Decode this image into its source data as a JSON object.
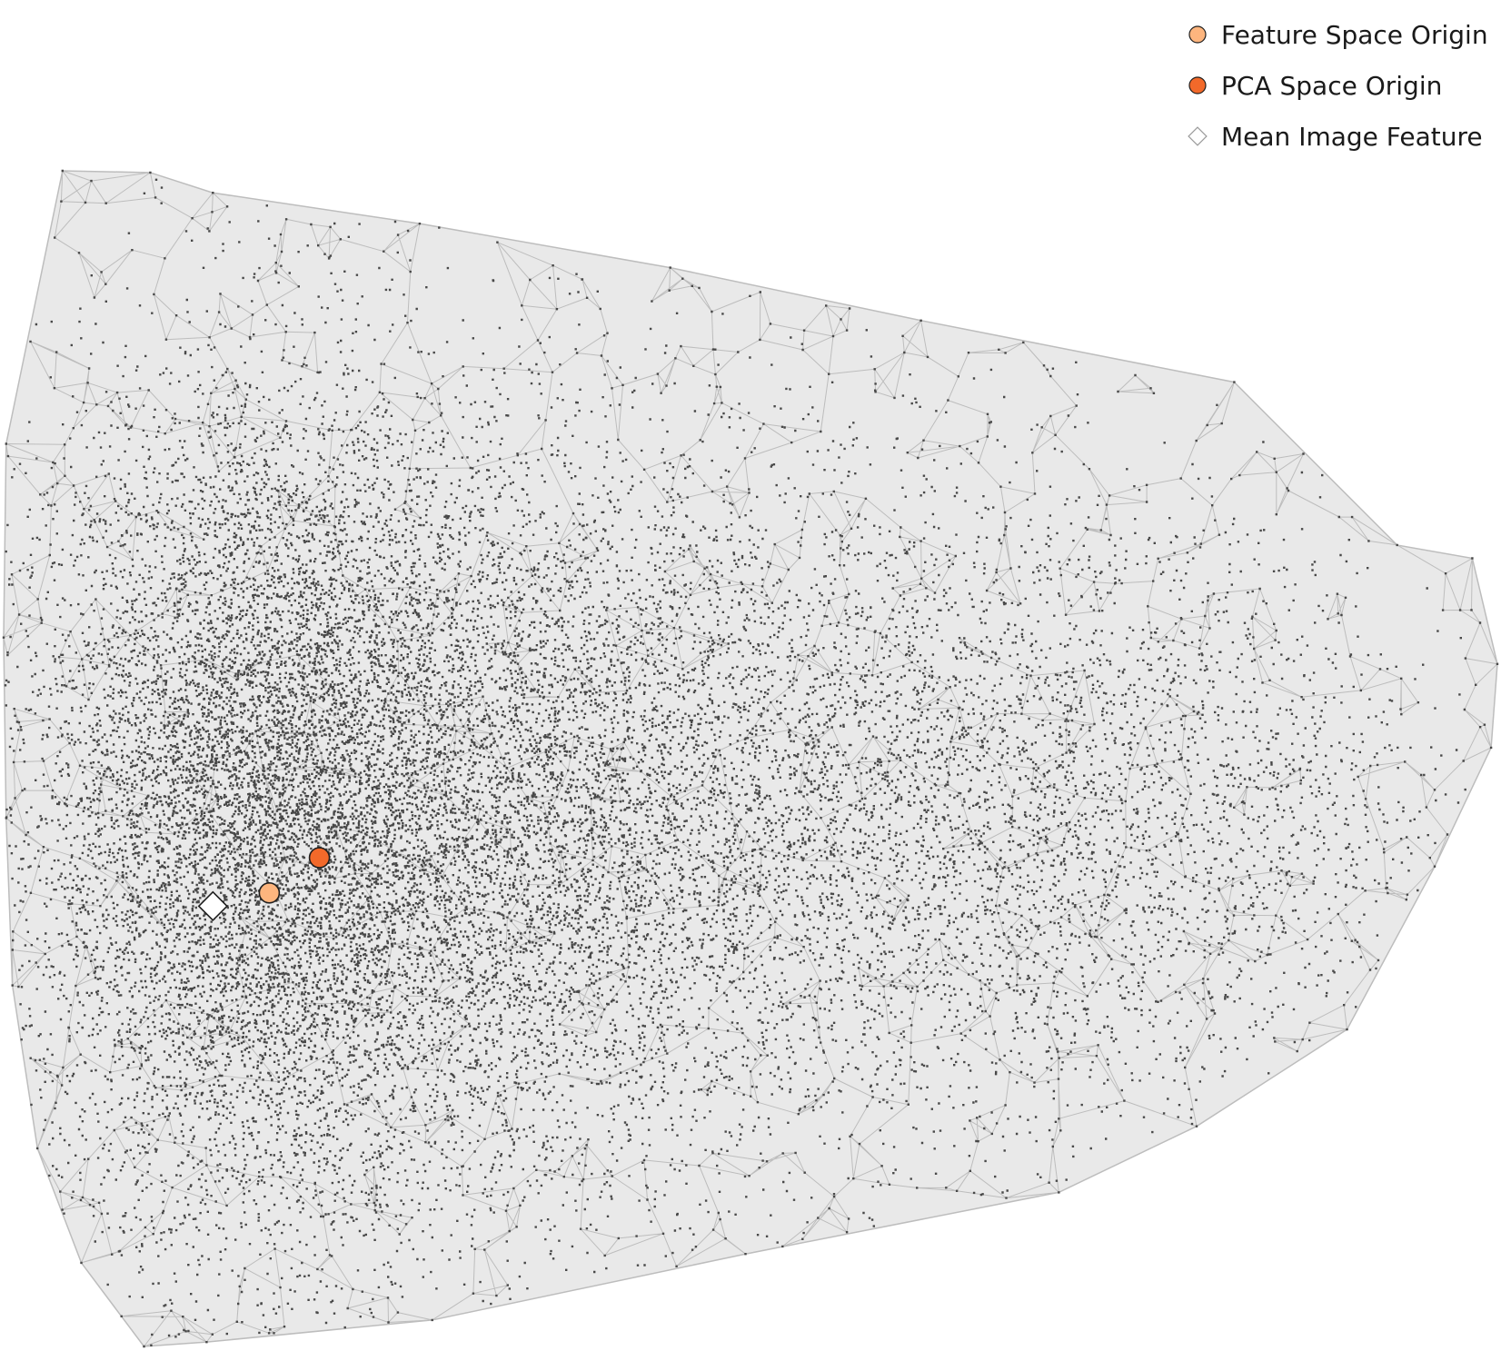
{
  "chart_data": {
    "type": "scatter",
    "title": "",
    "xlabel": "",
    "ylabel": "",
    "axes_visible": false,
    "grid": false,
    "legend_position": "top-right",
    "hull": [
      [
        -3.0,
        5.2
      ],
      [
        -2.55,
        8.3
      ],
      [
        -1.85,
        8.28
      ],
      [
        -1.35,
        8.05
      ],
      [
        0.3,
        7.7
      ],
      [
        2.3,
        7.2
      ],
      [
        4.3,
        6.6
      ],
      [
        6.8,
        5.9
      ],
      [
        8.1,
        4.05
      ],
      [
        8.7,
        3.9
      ],
      [
        8.9,
        2.7
      ],
      [
        8.85,
        1.75
      ],
      [
        8.4,
        0.4
      ],
      [
        7.7,
        -1.45
      ],
      [
        6.5,
        -2.55
      ],
      [
        5.4,
        -3.3
      ],
      [
        2.9,
        -4.0
      ],
      [
        0.4,
        -4.75
      ],
      [
        -1.4,
        -5.0
      ],
      [
        -1.9,
        -5.05
      ],
      [
        -2.4,
        -4.1
      ],
      [
        -2.75,
        -2.8
      ],
      [
        -2.95,
        -0.95
      ],
      [
        -3.0,
        0.95
      ],
      [
        -3.02,
        3.0
      ]
    ],
    "density_bands": [
      {
        "x_center": -1.0,
        "x_spread": 0.9,
        "y_spread": 2.4,
        "count": 9000
      },
      {
        "x_center": 1.0,
        "x_spread": 1.2,
        "y_spread": 2.2,
        "count": 6000
      },
      {
        "x_center": 3.5,
        "x_spread": 1.4,
        "y_spread": 2.0,
        "count": 3500
      },
      {
        "x_center": 5.8,
        "x_spread": 1.0,
        "y_spread": 1.7,
        "count": 1500
      },
      {
        "x_center": 7.4,
        "x_spread": 0.7,
        "y_spread": 1.4,
        "count": 350
      }
    ],
    "series": [
      {
        "name": "Feature Space Origin",
        "x": -0.9,
        "y": 0.1,
        "color": "#fdb57e",
        "marker": "circle"
      },
      {
        "name": "PCA Space Origin",
        "x": -0.5,
        "y": 0.5,
        "color": "#f2692a",
        "marker": "circle"
      },
      {
        "name": "Mean Image Feature",
        "x": -1.35,
        "y": -0.05,
        "color": "#ffffff",
        "marker": "diamond"
      }
    ],
    "xlim": [
      -3.02,
      8.9
    ],
    "ylim": [
      -5.05,
      8.3
    ]
  },
  "legend": {
    "items": [
      {
        "label": "Feature Space Origin",
        "color": "#fdb57e",
        "marker": "circle"
      },
      {
        "label": "PCA Space Origin",
        "color": "#f2692a",
        "marker": "circle"
      },
      {
        "label": "Mean Image Feature",
        "color": "#ffffff",
        "marker": "diamond"
      }
    ]
  },
  "colors": {
    "points": "#484848",
    "hull_fill": "#e9e9e9",
    "mesh_lines": "#bdbdbd",
    "marker_edge": "#1f1f1f"
  }
}
